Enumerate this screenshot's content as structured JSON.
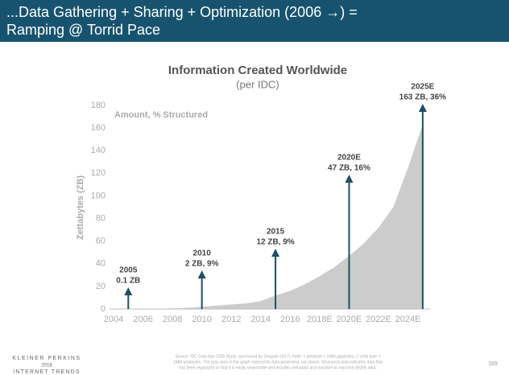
{
  "header": {
    "title_lines": [
      "...Data Gathering + Sharing + Optimization (2006 →) =",
      "Ramping @ Torrid Pace"
    ]
  },
  "chart_data": {
    "type": "area",
    "title": "Information Created Worldwide",
    "subtitle": "(per IDC)",
    "y_label": "Zettabytes (ZB)",
    "series_label": "Amount, % Structured",
    "x": [
      2005,
      2006,
      2007,
      2008,
      2009,
      2010,
      2011,
      2012,
      2013,
      2014,
      2015,
      2016,
      2017,
      2018,
      2019,
      2020,
      2021,
      2022,
      2023,
      2024,
      2025
    ],
    "values": [
      0.1,
      0.2,
      0.3,
      0.5,
      1,
      2,
      3,
      4,
      5,
      7,
      12,
      16,
      22,
      29,
      37,
      47,
      58,
      72,
      90,
      125,
      163
    ],
    "color": "#cccccc",
    "xlim": [
      2004,
      2025.5
    ],
    "xticks": [
      2004,
      2006,
      2008,
      2010,
      2012,
      2014,
      2016,
      {
        "value": 2018,
        "label": "2018E"
      },
      {
        "value": 2020,
        "label": "2020E"
      },
      {
        "value": 2022,
        "label": "2022E"
      },
      {
        "value": 2024,
        "label": "2024E"
      }
    ],
    "ylim": [
      0,
      180
    ],
    "yticks": [
      0,
      20,
      40,
      60,
      80,
      100,
      120,
      140,
      160,
      180
    ],
    "grid": false,
    "annotations": [
      {
        "x": 2005,
        "lines": [
          "2005",
          "0.1 ZB"
        ]
      },
      {
        "x": 2010,
        "lines": [
          "2010",
          "2 ZB, 9%"
        ]
      },
      {
        "x": 2015,
        "lines": [
          "2015",
          "12 ZB, 9%"
        ]
      },
      {
        "x": 2020,
        "lines": [
          "2020E",
          "47 ZB, 16%"
        ]
      },
      {
        "x": 2025,
        "lines": [
          "2025E",
          "163 ZB, 36%"
        ]
      }
    ]
  },
  "footer": {
    "logo_lines": [
      "KLEINER PERKINS",
      "2018",
      "INTERNET TRENDS"
    ],
    "source_lines": [
      "Source: IDC Data Age 2025 Study, sponsored by Seagate (4/17). Note: 1 petabyte = 1MM gigabytes, 1 zetta byte =",
      "1MM petabytes. The gray area in the graph represents data generated, not stored. Structured data indicates data that",
      "has been organized so that it is easily searchable and includes metadata and machine-to-machine (M2M) data."
    ],
    "page": "189"
  }
}
